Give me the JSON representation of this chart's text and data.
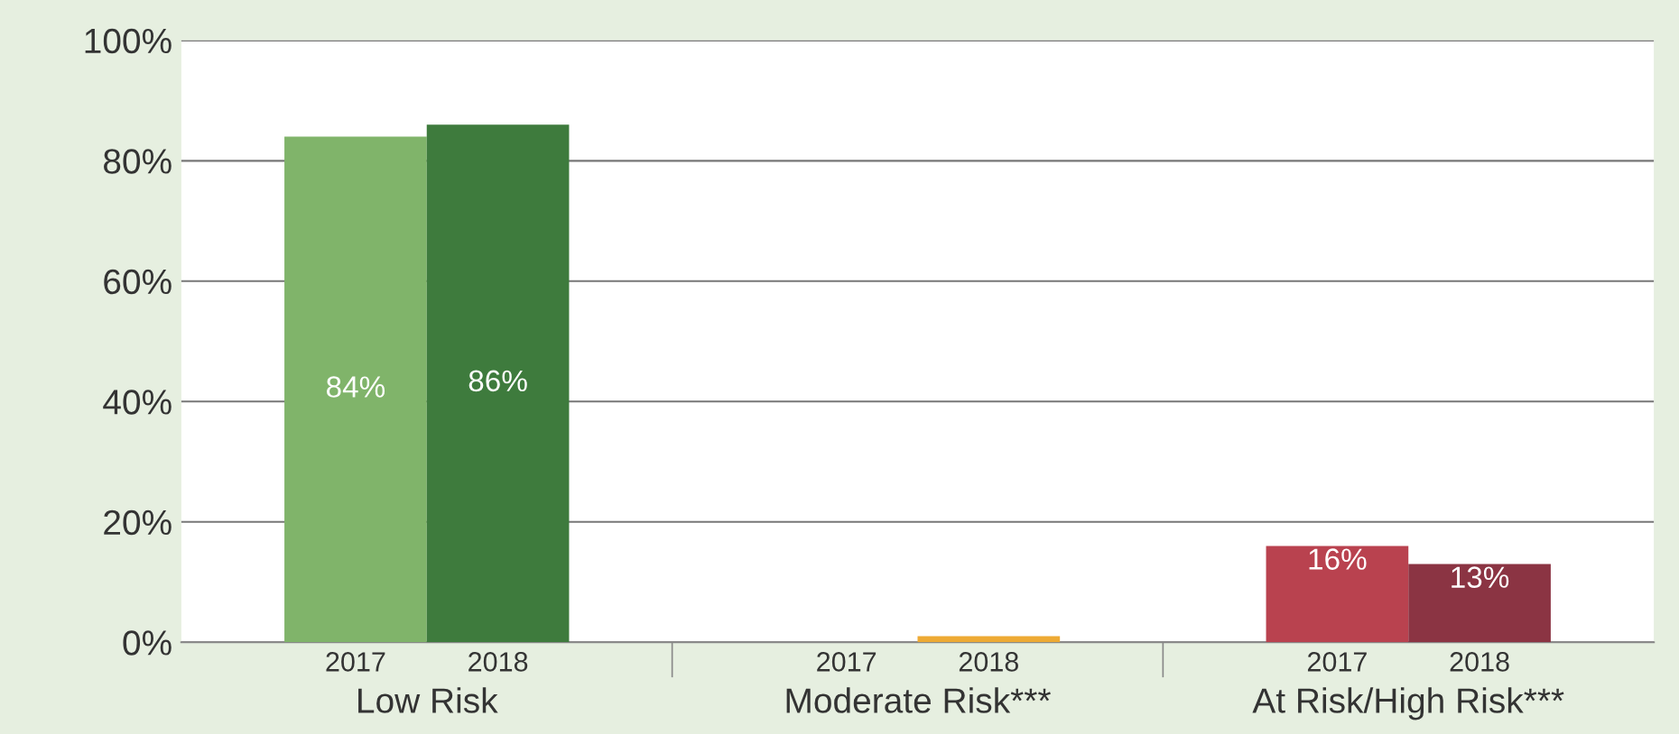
{
  "chart_data": {
    "type": "bar",
    "categories": [
      "Low Risk",
      "Moderate Risk***",
      "At Risk/High Risk***"
    ],
    "series": [
      {
        "name": "2017",
        "colors": [
          "#80b46a",
          "#e9a93a",
          "#b9424f"
        ],
        "values": [
          84,
          0,
          16
        ],
        "value_labels": [
          "84%",
          null,
          "16%"
        ]
      },
      {
        "name": "2018",
        "colors": [
          "#3e7b3d",
          "#eeaa34",
          "#8b3443"
        ],
        "values": [
          86,
          1,
          13
        ],
        "value_labels": [
          "86%",
          null,
          "13%"
        ]
      }
    ],
    "ylim": [
      0,
      100
    ],
    "yticks": [
      {
        "value": 0,
        "label": "0%"
      },
      {
        "value": 20,
        "label": "20%"
      },
      {
        "value": 40,
        "label": "40%"
      },
      {
        "value": 60,
        "label": "60%"
      },
      {
        "value": 80,
        "label": "80%"
      },
      {
        "value": 100,
        "label": "100%"
      }
    ],
    "grid": "y",
    "legend": false
  }
}
